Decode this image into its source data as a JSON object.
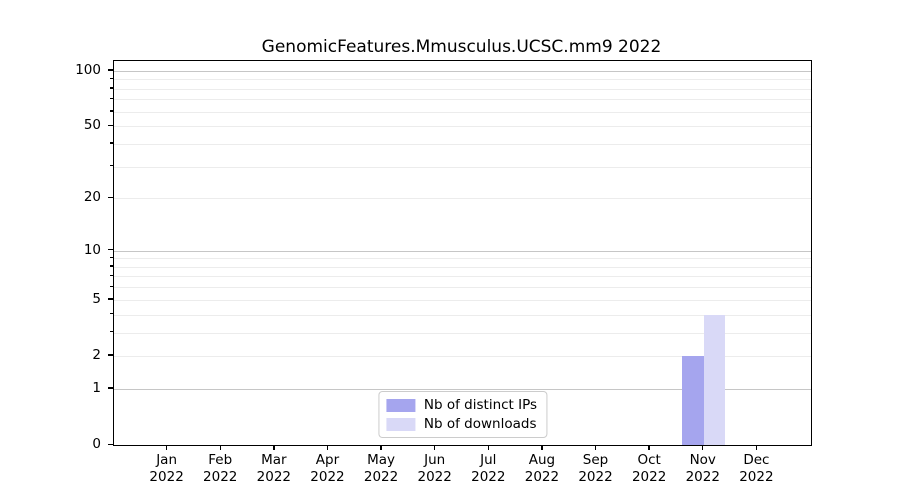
{
  "chart_data": {
    "type": "bar",
    "title": "GenomicFeatures.Mmusculus.UCSC.mm9 2022",
    "xlabel": "",
    "ylabel": "",
    "categories": [
      {
        "month": "Jan",
        "year": "2022"
      },
      {
        "month": "Feb",
        "year": "2022"
      },
      {
        "month": "Mar",
        "year": "2022"
      },
      {
        "month": "Apr",
        "year": "2022"
      },
      {
        "month": "May",
        "year": "2022"
      },
      {
        "month": "Jun",
        "year": "2022"
      },
      {
        "month": "Jul",
        "year": "2022"
      },
      {
        "month": "Aug",
        "year": "2022"
      },
      {
        "month": "Sep",
        "year": "2022"
      },
      {
        "month": "Oct",
        "year": "2022"
      },
      {
        "month": "Nov",
        "year": "2022"
      },
      {
        "month": "Dec",
        "year": "2022"
      }
    ],
    "series": [
      {
        "name": "Nb of distinct IPs",
        "color": "#a5a5ee",
        "values": [
          0,
          0,
          0,
          0,
          0,
          0,
          0,
          0,
          0,
          0,
          2,
          0
        ]
      },
      {
        "name": "Nb of downloads",
        "color": "#d9d9f7",
        "values": [
          0,
          0,
          0,
          0,
          0,
          0,
          0,
          0,
          0,
          0,
          4,
          0
        ]
      }
    ],
    "y_scale": "log1p",
    "ylim": [
      0,
      113
    ],
    "y_ticks": [
      0,
      1,
      2,
      5,
      10,
      20,
      50,
      100
    ],
    "y_major_gridlines": [
      1,
      10,
      100
    ],
    "y_minor_gridlines": [
      2,
      3,
      4,
      5,
      6,
      7,
      8,
      9,
      20,
      30,
      40,
      50,
      60,
      70,
      80,
      90
    ],
    "grid": "horizontal",
    "legend_position": "lower center",
    "colors": {
      "major_grid": "#c6c6c6",
      "minor_grid": "#ececec",
      "spine": "#000000",
      "text": "#000000",
      "background": "#ffffff"
    }
  }
}
